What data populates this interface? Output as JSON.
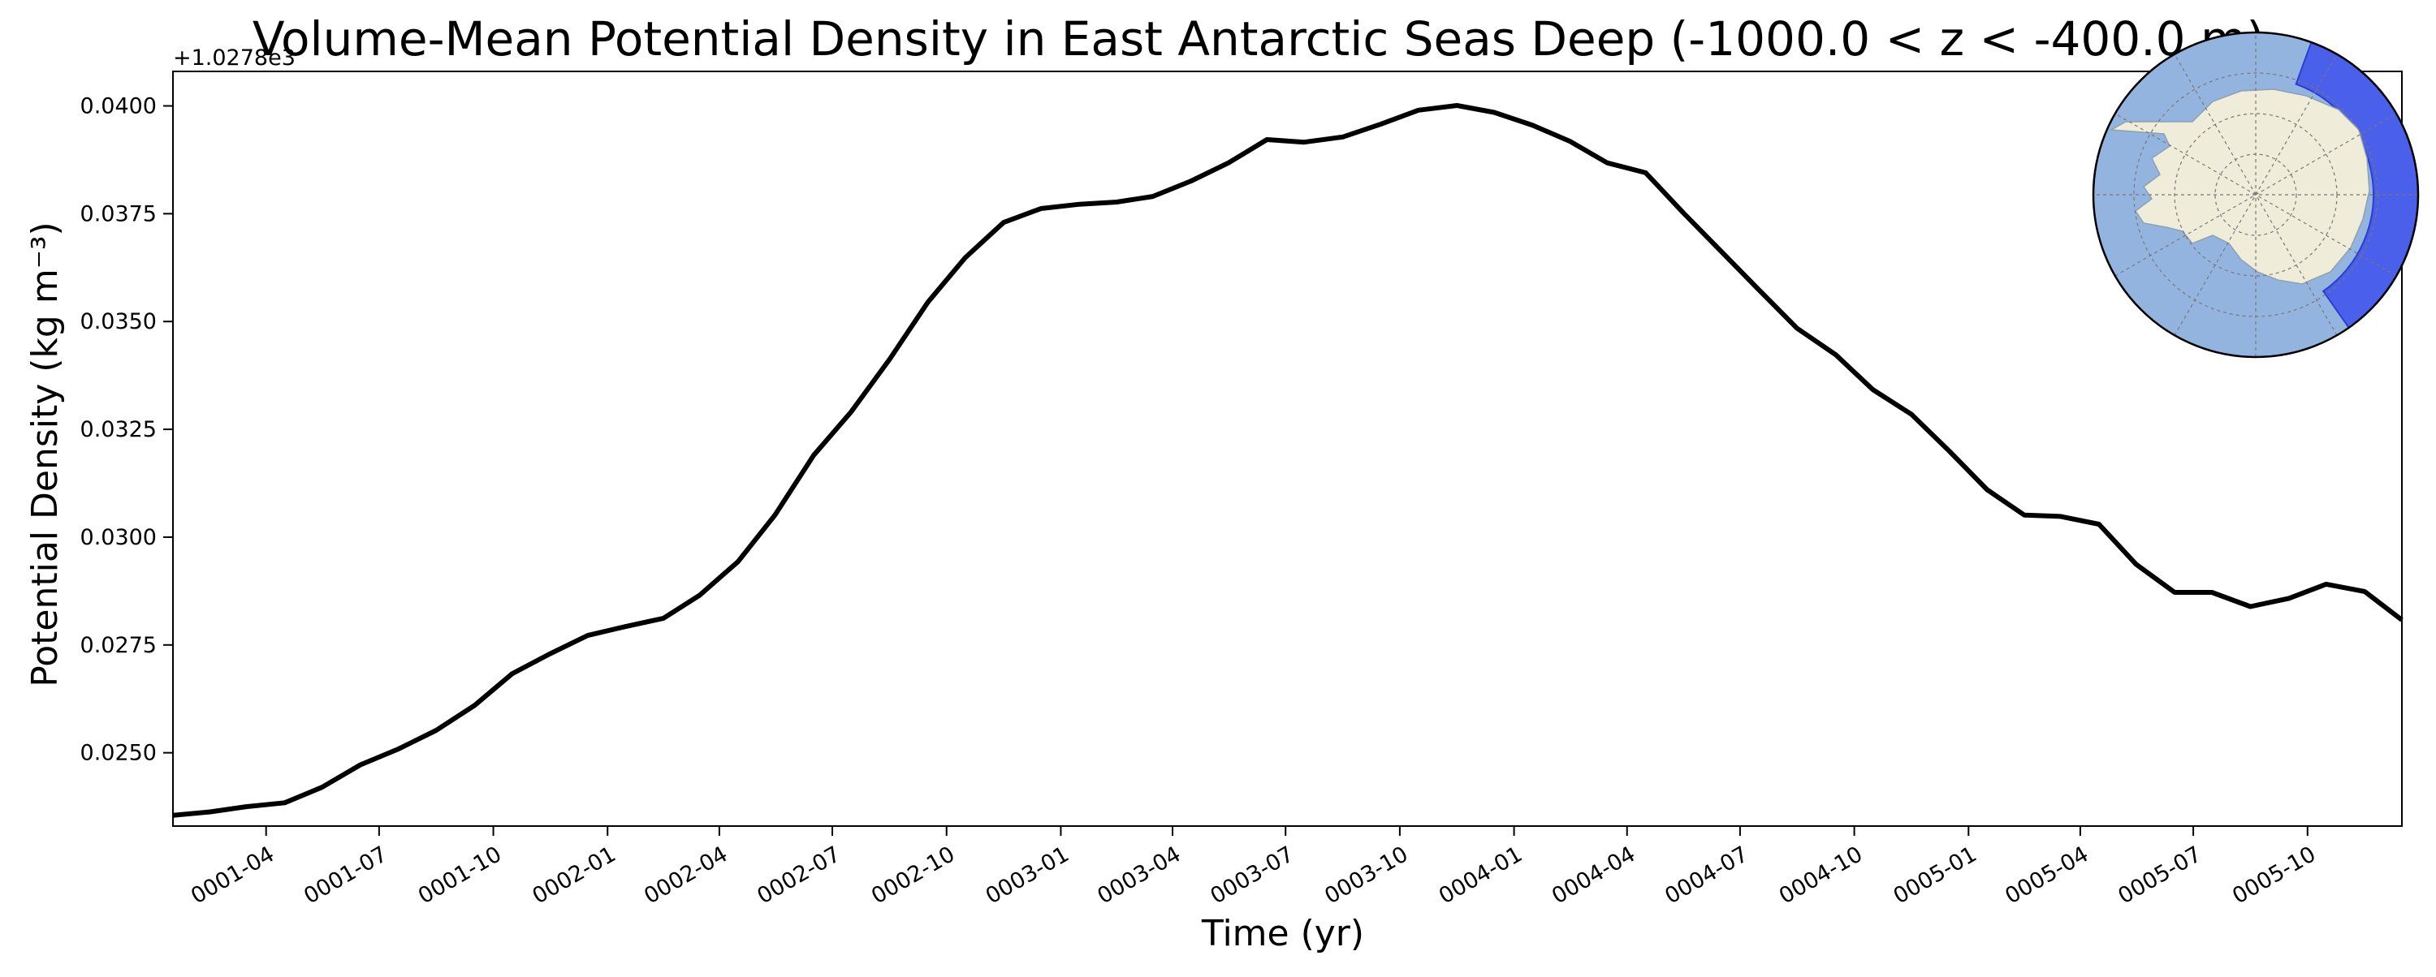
{
  "chart_data": {
    "type": "line",
    "title": "Volume-Mean Potential Density in East Antarctic Seas Deep (-1000.0 < z < -400.0 m)",
    "xlabel": "Time (yr)",
    "ylabel": "Potential Density (kg m⁻³)",
    "y_offset_label": "+1.0278e3",
    "xlim": [
      "0001-01-16",
      "0005-12-16"
    ],
    "ylim": [
      0.0233,
      0.0408
    ],
    "grid": false,
    "x_tick_labels": [
      "0001-04",
      "0001-07",
      "0001-10",
      "0002-01",
      "0002-04",
      "0002-07",
      "0002-10",
      "0003-01",
      "0003-04",
      "0003-07",
      "0003-10",
      "0004-01",
      "0004-04",
      "0004-07",
      "0004-10",
      "0005-01",
      "0005-04",
      "0005-07",
      "0005-10"
    ],
    "y_tick_labels": [
      "0.0250",
      "0.0275",
      "0.0300",
      "0.0325",
      "0.0350",
      "0.0375",
      "0.0400"
    ],
    "series": [
      {
        "line_color": "#000000",
        "x": [
          "0001-01-16",
          "0001-02-15",
          "0001-03-16",
          "0001-04-16",
          "0001-05-16",
          "0001-06-16",
          "0001-07-16",
          "0001-08-16",
          "0001-09-16",
          "0001-10-16",
          "0001-11-16",
          "0001-12-16",
          "0002-01-16",
          "0002-02-15",
          "0002-03-16",
          "0002-04-16",
          "0002-05-16",
          "0002-06-16",
          "0002-07-16",
          "0002-08-16",
          "0002-09-16",
          "0002-10-16",
          "0002-11-16",
          "0002-12-16",
          "0003-01-16",
          "0003-02-15",
          "0003-03-16",
          "0003-04-16",
          "0003-05-16",
          "0003-06-16",
          "0003-07-16",
          "0003-08-16",
          "0003-09-16",
          "0003-10-16",
          "0003-11-16",
          "0003-12-16",
          "0004-01-16",
          "0004-02-15",
          "0004-03-16",
          "0004-04-16",
          "0004-05-16",
          "0004-06-16",
          "0004-07-16",
          "0004-08-16",
          "0004-09-16",
          "0004-10-16",
          "0004-11-16",
          "0004-12-16",
          "0005-01-16",
          "0005-02-15",
          "0005-03-16",
          "0005-04-16",
          "0005-05-16",
          "0005-06-16",
          "0005-07-16",
          "0005-08-16",
          "0005-09-16",
          "0005-10-16",
          "0005-11-16",
          "0005-12-16"
        ],
        "y": [
          0.02355,
          0.02363,
          0.02375,
          0.02384,
          0.0242,
          0.02472,
          0.02508,
          0.02552,
          0.0261,
          0.02683,
          0.0273,
          0.02772,
          0.02793,
          0.02812,
          0.02865,
          0.02943,
          0.03052,
          0.0319,
          0.0329,
          0.03412,
          0.03545,
          0.03648,
          0.0373,
          0.03762,
          0.03772,
          0.03777,
          0.0379,
          0.03826,
          0.03868,
          0.03922,
          0.03916,
          0.03928,
          0.03958,
          0.0399,
          0.04001,
          0.03985,
          0.03955,
          0.03918,
          0.03868,
          0.03845,
          0.03753,
          0.03662,
          0.03574,
          0.03484,
          0.03423,
          0.03342,
          0.03285,
          0.03201,
          0.0311,
          0.03051,
          0.03048,
          0.0303,
          0.02937,
          0.02872,
          0.02872,
          0.02839,
          0.02858,
          0.02891,
          0.02874,
          0.02808
        ]
      }
    ]
  },
  "inset_map": {
    "ocean_color": "#94b4e0",
    "land_color": "#efedd9",
    "region_color": "#4a5fea"
  }
}
